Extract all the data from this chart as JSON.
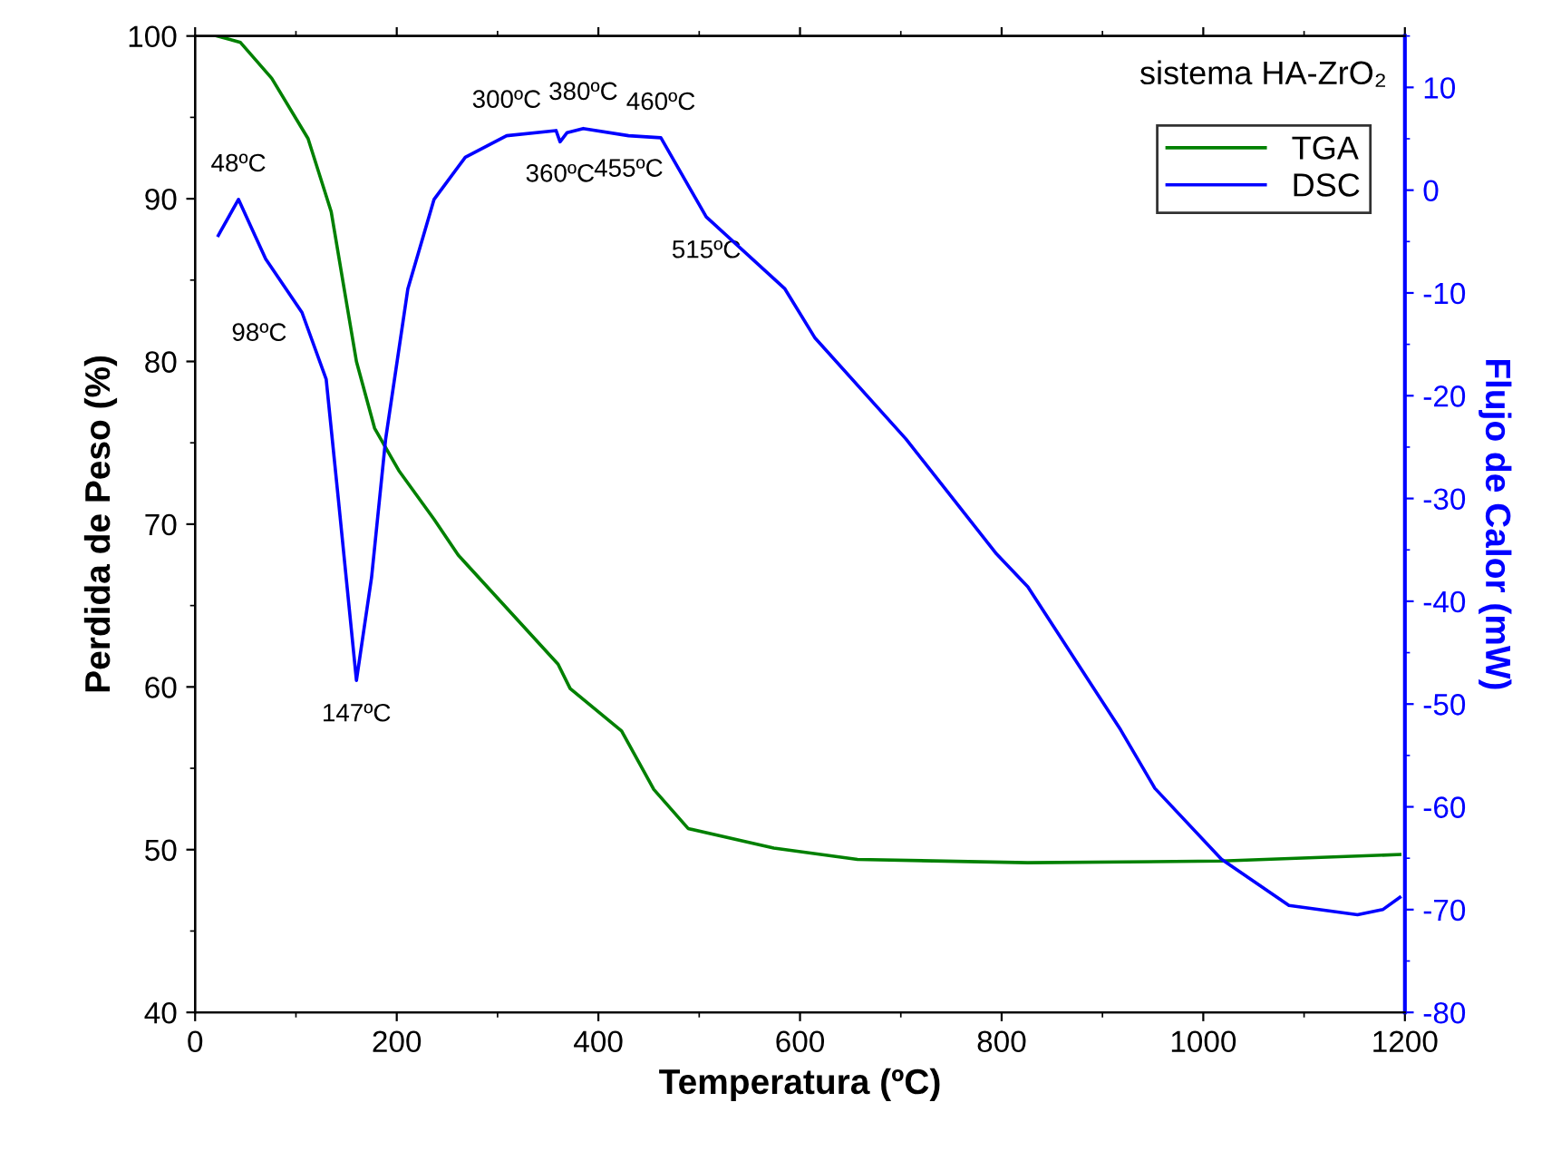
{
  "chart_data": {
    "type": "line",
    "xlabel": "Temperatura (ºC)",
    "ylabel": "Perdida de Peso (%)",
    "y2label": "Flujo de Calor (mW)",
    "xlim": [
      0,
      1200
    ],
    "xticks": [
      0,
      200,
      400,
      600,
      800,
      1000,
      1200
    ],
    "ylim": [
      40,
      100
    ],
    "yticks": [
      40,
      50,
      60,
      70,
      80,
      90,
      100
    ],
    "y2lim": [
      -80,
      15
    ],
    "y2ticks": [
      -80,
      -70,
      -60,
      -50,
      -40,
      -30,
      -20,
      -10,
      0,
      10
    ],
    "legend": "top right",
    "grid": false,
    "series": [
      {
        "name": "TGA",
        "color": "#008000",
        "x": [
          22,
          45,
          76,
          112,
          135,
          148,
          160,
          178,
          202,
          237,
          261,
          354,
          360,
          372,
          423,
          455,
          489,
          574,
          657,
          826,
          1018,
          1195
        ],
        "values": [
          100,
          99.6,
          97.4,
          93.7,
          89.2,
          84.4,
          80,
          75.9,
          73.3,
          70.3,
          68.1,
          61.8,
          61.4,
          59.9,
          57.3,
          53.7,
          51.3,
          50.1,
          49.4,
          49.2,
          49.3,
          49.7
        ]
      },
      {
        "name": "DSC",
        "color": "#0000ff",
        "axis": "y2",
        "x": [
          23,
          43,
          70,
          106,
          130,
          142,
          160,
          175,
          189,
          211,
          237,
          268,
          309,
          358,
          362,
          369,
          385,
          430,
          462,
          507,
          585,
          615,
          705,
          795,
          826,
          918,
          952,
          1018,
          1085,
          1153,
          1178,
          1195
        ],
        "values": [
          -4.4,
          -0.9,
          -6.7,
          -11.9,
          -18.4,
          -30,
          -47.7,
          -37.7,
          -24.2,
          -9.6,
          -0.9,
          3.2,
          5.3,
          5.8,
          4.7,
          5.6,
          6.0,
          5.3,
          5.1,
          -2.6,
          -9.6,
          -14.4,
          -24.2,
          -35.4,
          -38.6,
          -52.5,
          -58.2,
          -65.1,
          -69.6,
          -70.5,
          -70,
          -68.8
        ]
      }
    ],
    "annotations": [
      "sistema HA-ZrO₂",
      {
        "text": "48ºC",
        "x": 43,
        "y": 89.96
      },
      {
        "text": "98ºC",
        "x": 106,
        "y": 83.01
      },
      {
        "text": "147ºC",
        "x": 160,
        "y": 60.4
      },
      {
        "text": "300ºC",
        "x": 309,
        "y": 93.88
      },
      {
        "text": "360ºC",
        "x": 362,
        "y": 93.56
      },
      {
        "text": "380ºC",
        "x": 385,
        "y": 94.37
      },
      {
        "text": "455ºC",
        "x": 430,
        "y": 93.88
      },
      {
        "text": "460ºC",
        "x": 462,
        "y": 93.75
      },
      {
        "text": "515ºC",
        "x": 507,
        "y": 88.88
      }
    ]
  }
}
